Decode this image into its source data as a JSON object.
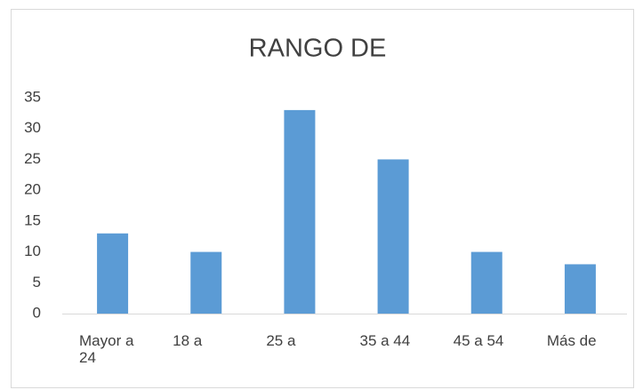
{
  "chart_data": {
    "type": "bar",
    "title": "RANGO DE",
    "categories": [
      "Mayor a 24",
      "18 a",
      "25 a",
      "35 a 44",
      "45 a 54",
      "Más de"
    ],
    "values": [
      13,
      10,
      33,
      25,
      10,
      8
    ],
    "color": "#5b9bd5",
    "ylim": [
      0,
      35
    ],
    "yticks": [
      0,
      5,
      10,
      15,
      20,
      25,
      30,
      35
    ],
    "grid": false
  }
}
